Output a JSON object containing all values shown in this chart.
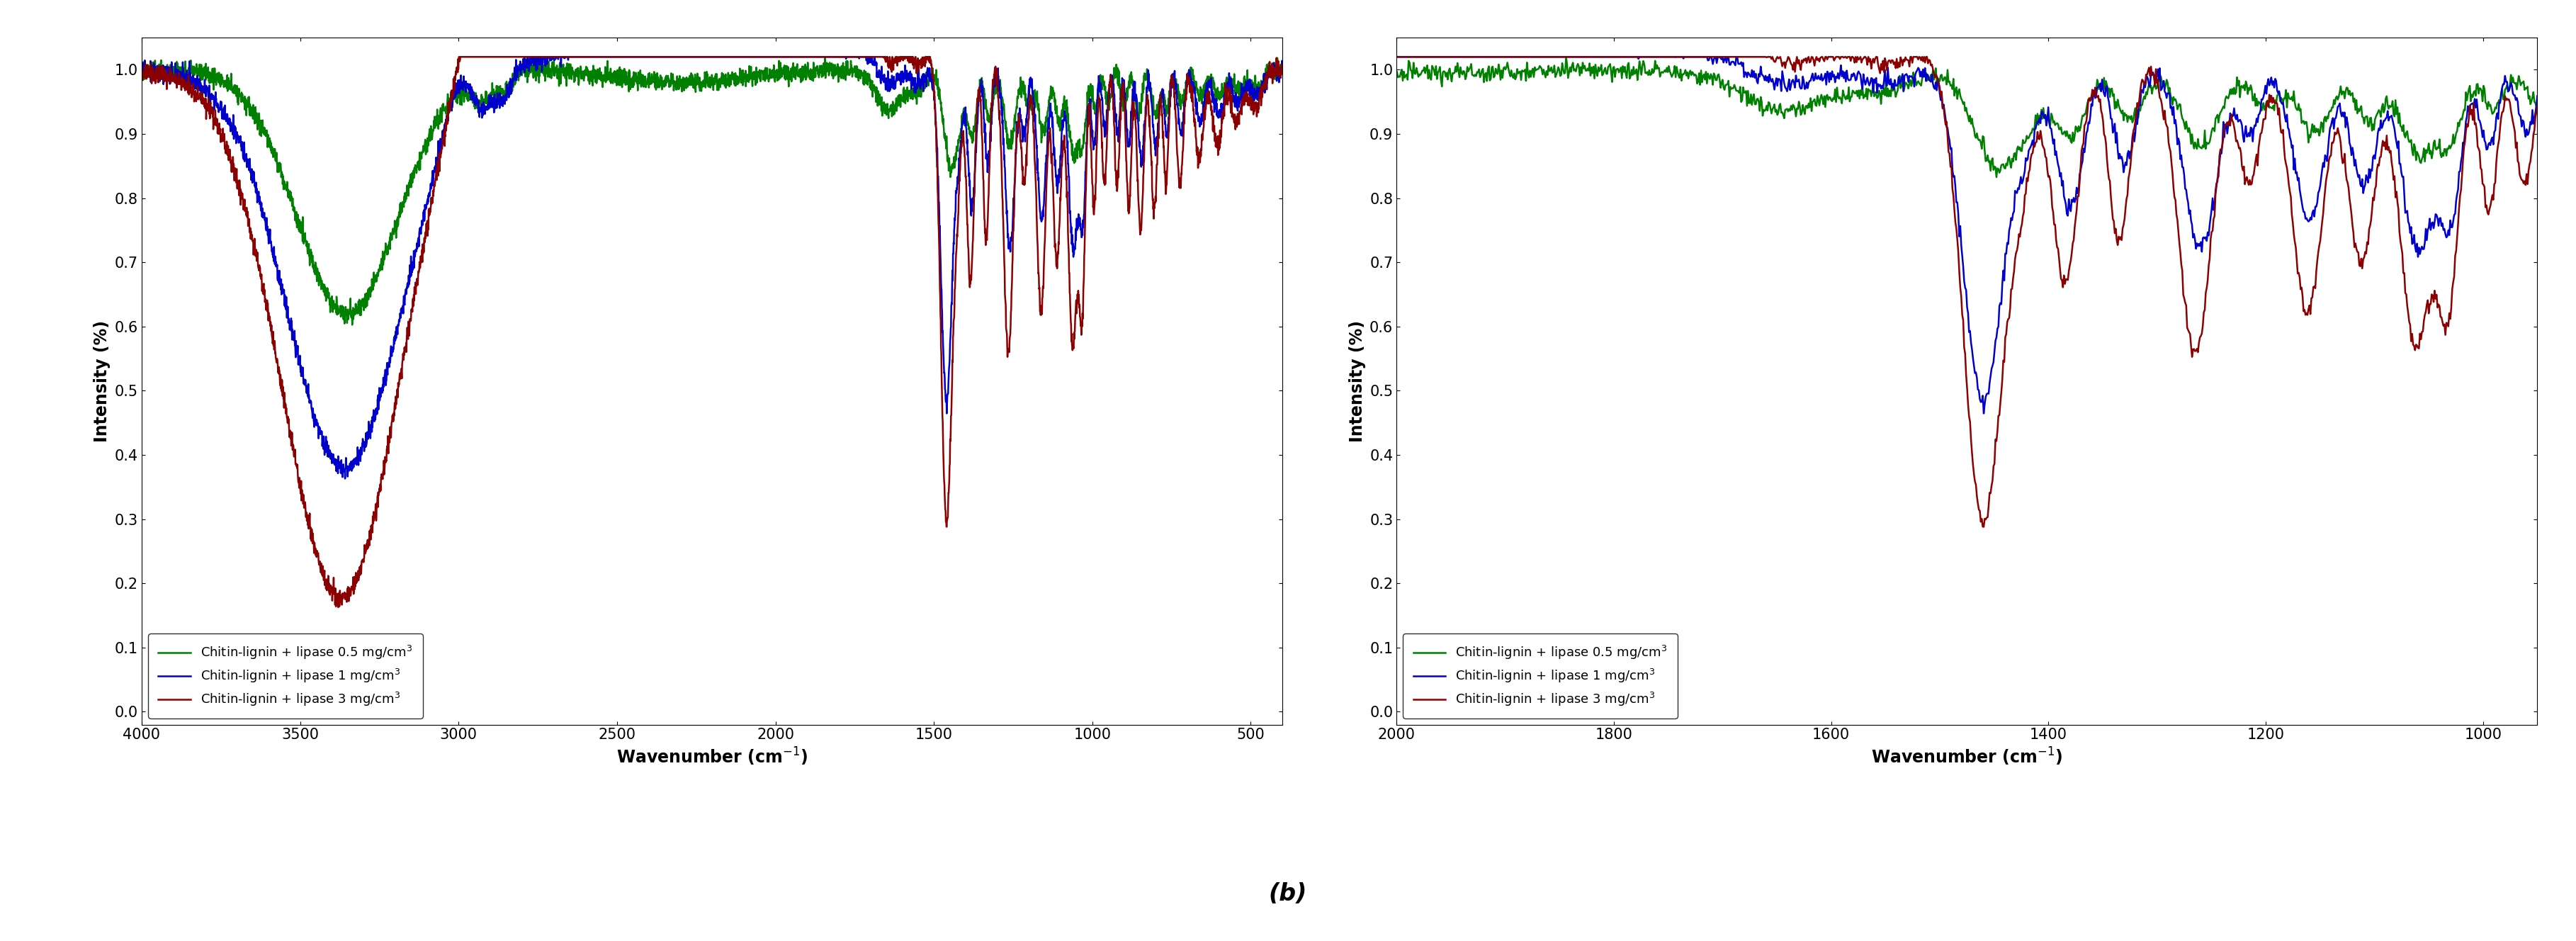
{
  "colors": {
    "green": "#008000",
    "blue": "#0000CC",
    "dark_red": "#8B0000"
  },
  "legend_labels": [
    "Chitin-lignin + lipase 0.5 mg/cm$^3$",
    "Chitin-lignin + lipase 1 mg/cm$^3$",
    "Chitin-lignin + lipase 3 mg/cm$^3$"
  ],
  "xlabel": "Wavenumber (cm$^{-1}$)",
  "ylabel": "Intensity (%)",
  "plot1": {
    "xlim": [
      4000,
      400
    ],
    "xticks": [
      4000,
      3500,
      3000,
      2500,
      2000,
      1500,
      1000,
      500
    ],
    "ylim": [
      -0.02,
      1.05
    ],
    "yticks": [
      0.0,
      0.1,
      0.2,
      0.3,
      0.4,
      0.5,
      0.6,
      0.7,
      0.8,
      0.9,
      1.0
    ]
  },
  "plot2": {
    "xlim": [
      2000,
      950
    ],
    "xticks": [
      2000,
      1800,
      1600,
      1400,
      1200,
      1000
    ],
    "ylim": [
      -0.02,
      1.05
    ],
    "yticks": [
      0.0,
      0.1,
      0.2,
      0.3,
      0.4,
      0.5,
      0.6,
      0.7,
      0.8,
      0.9,
      1.0
    ]
  },
  "label_b": "(b)",
  "linewidth": 1.8,
  "tick_fontsize": 15,
  "label_fontsize": 17,
  "legend_fontsize": 13
}
